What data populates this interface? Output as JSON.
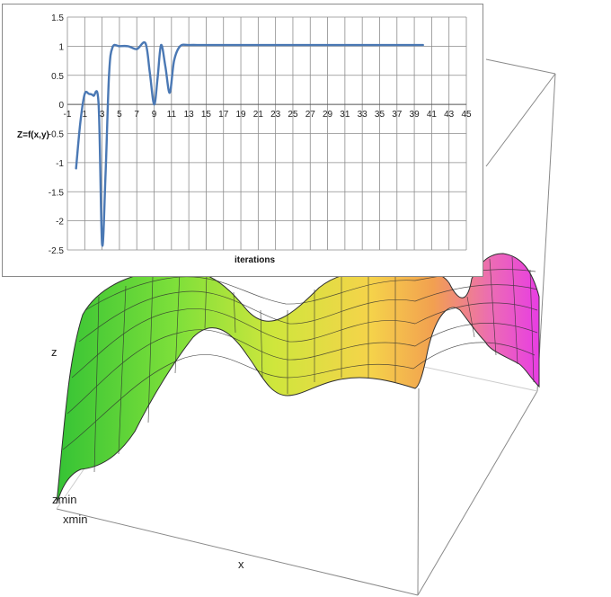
{
  "surface_plot": {
    "z_label": "z",
    "zmin_label": "zmin",
    "xmin_label": "xmin",
    "x_label": "x",
    "colors": [
      "#35c335",
      "#7fe03a",
      "#cfe63c",
      "#f5d34a",
      "#f2a050",
      "#ec6cb4",
      "#e83de3"
    ]
  },
  "chart_data": {
    "type": "line",
    "title": "",
    "xlabel": "iterations",
    "ylabel": "Z=f(x,y)",
    "xlim": [
      -1,
      45
    ],
    "ylim": [
      -2.5,
      1.5
    ],
    "x_ticks": [
      -1,
      1,
      3,
      5,
      7,
      9,
      11,
      13,
      15,
      17,
      19,
      21,
      23,
      25,
      27,
      29,
      31,
      33,
      35,
      37,
      39,
      41,
      43,
      45
    ],
    "y_ticks": [
      -2.5,
      -2,
      -1.5,
      -1,
      -0.5,
      0,
      0.5,
      1,
      1.5
    ],
    "grid": true,
    "line_color": "#4a78b4",
    "series": [
      {
        "x": [
          0,
          0.5,
          1,
          1.5,
          2,
          2.6,
          3,
          3.4,
          3.8,
          4.2,
          5,
          6,
          7,
          8,
          8.5,
          9,
          9.4,
          9.8,
          10.3,
          10.8,
          11.3,
          12,
          13,
          15,
          20,
          25,
          30,
          35,
          40
        ],
        "values": [
          -1.1,
          -0.3,
          0.18,
          0.18,
          0.15,
          0.0,
          -2.4,
          -1.2,
          0.5,
          0.98,
          1.0,
          1.0,
          0.95,
          1.05,
          0.55,
          0.0,
          0.45,
          1.02,
          0.65,
          0.2,
          0.75,
          1.0,
          1.02,
          1.02,
          1.02,
          1.02,
          1.02,
          1.02,
          1.02
        ]
      }
    ]
  }
}
